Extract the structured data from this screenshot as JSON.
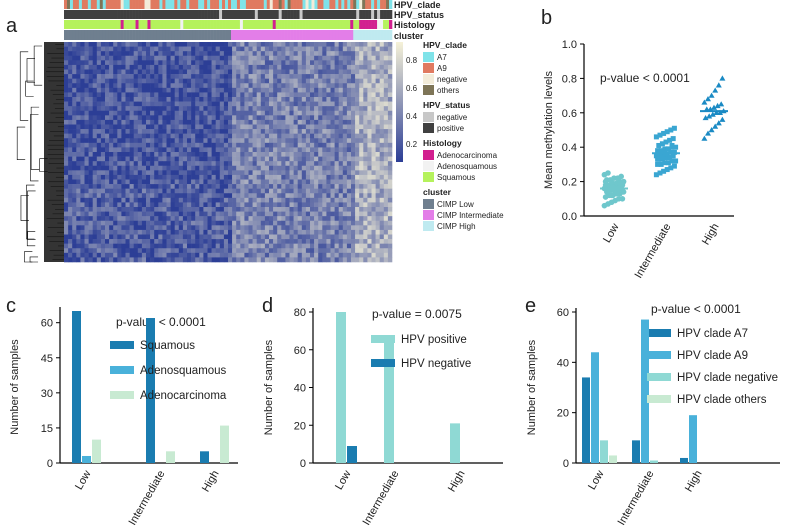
{
  "panel_labels": {
    "a": "a",
    "b": "b",
    "c": "c",
    "d": "d",
    "e": "e"
  },
  "colors": {
    "A7": "#7fe3e9",
    "A9": "#e07a60",
    "negative_clade": "#f3ecd9",
    "others": "#7e7557",
    "status_negative": "#c8c8c8",
    "status_positive": "#404040",
    "adenocarcinoma": "#d21f8f",
    "adenosquamous": "#f2f2f2",
    "squamous": "#b5f25c",
    "cimp_low": "#6f7f8f",
    "cimp_intermediate": "#e37ee8",
    "cimp_high": "#bfeaf0",
    "heat_low": "#2c3e96",
    "heat_high": "#f6f2d8",
    "bar_dark": "#1a7cb0",
    "bar_mid": "#49b1da",
    "bar_teal": "#8fd9d4",
    "bar_light": "#c8ead2",
    "dot_low": "#6fc7cc",
    "dot_int": "#3aa6d2",
    "dot_high": "#1a8ac4"
  },
  "heatmap": {
    "track_labels": [
      "HPV_clade",
      "HPV_status",
      "Histology",
      "cluster"
    ],
    "colorbar_ticks": [
      "0.8",
      "0.6",
      "0.4",
      "0.2"
    ],
    "legend": [
      {
        "title": "HPV_clade",
        "items": [
          "A7",
          "A9",
          "negative",
          "others"
        ]
      },
      {
        "title": "HPV_status",
        "items": [
          "negative",
          "positive"
        ]
      },
      {
        "title": "Histology",
        "items": [
          "Adenocarcinoma",
          "Adenosquamous",
          "Squamous"
        ]
      },
      {
        "title": "cluster",
        "items": [
          "CIMP Low",
          "CIMP Intermediate",
          "CIMP High"
        ]
      }
    ]
  },
  "chart_data": [
    {
      "panel": "b",
      "type": "scatter",
      "annotation": "p-value < 0.0001",
      "ylabel": "Mean methylation levels",
      "categories": [
        "Low",
        "Intermediate",
        "High"
      ],
      "ylim": [
        0,
        1.0
      ],
      "yticks": [
        "0.0",
        "0.2",
        "0.4",
        "0.6",
        "0.8",
        "1.0"
      ],
      "means": [
        0.16,
        0.365,
        0.61
      ],
      "series": [
        {
          "category": "Low",
          "values": [
            0.06,
            0.07,
            0.08,
            0.09,
            0.1,
            0.1,
            0.11,
            0.12,
            0.12,
            0.13,
            0.13,
            0.14,
            0.14,
            0.15,
            0.15,
            0.15,
            0.16,
            0.16,
            0.16,
            0.17,
            0.17,
            0.17,
            0.18,
            0.18,
            0.18,
            0.19,
            0.19,
            0.2,
            0.2,
            0.21,
            0.21,
            0.22,
            0.22,
            0.23,
            0.24,
            0.25,
            0.12,
            0.14,
            0.16,
            0.18,
            0.2,
            0.15,
            0.17,
            0.13,
            0.19
          ]
        },
        {
          "category": "Intermediate",
          "values": [
            0.24,
            0.25,
            0.26,
            0.27,
            0.28,
            0.29,
            0.3,
            0.3,
            0.31,
            0.31,
            0.32,
            0.32,
            0.33,
            0.33,
            0.34,
            0.34,
            0.35,
            0.35,
            0.36,
            0.36,
            0.36,
            0.37,
            0.37,
            0.38,
            0.38,
            0.39,
            0.39,
            0.4,
            0.4,
            0.41,
            0.42,
            0.43,
            0.44,
            0.45,
            0.46,
            0.47,
            0.48,
            0.49,
            0.5,
            0.51,
            0.33,
            0.35,
            0.37,
            0.39,
            0.41
          ]
        },
        {
          "category": "High",
          "values": [
            0.45,
            0.48,
            0.5,
            0.52,
            0.54,
            0.56,
            0.57,
            0.58,
            0.59,
            0.6,
            0.6,
            0.61,
            0.62,
            0.62,
            0.63,
            0.64,
            0.65,
            0.66,
            0.68,
            0.7,
            0.73,
            0.76,
            0.8
          ]
        }
      ]
    },
    {
      "panel": "c",
      "type": "bar",
      "annotation": "p-value < 0.0001",
      "ylabel": "Number of samples",
      "categories": [
        "Low",
        "Intermediate",
        "High"
      ],
      "ylim": [
        0,
        65
      ],
      "yticks": [
        "0",
        "15",
        "30",
        "45",
        "60"
      ],
      "series": [
        {
          "name": "Squamous",
          "values": [
            65,
            62,
            5
          ]
        },
        {
          "name": "Adenosquamous",
          "values": [
            3,
            0,
            0
          ]
        },
        {
          "name": "Adenocarcinoma",
          "values": [
            10,
            5,
            16
          ]
        }
      ]
    },
    {
      "panel": "d",
      "type": "bar",
      "annotation": "p-value = 0.0075",
      "ylabel": "Number of samples",
      "categories": [
        "Low",
        "Intermediate",
        "High"
      ],
      "ylim": [
        0,
        80
      ],
      "yticks": [
        "0",
        "20",
        "40",
        "60",
        "80"
      ],
      "series": [
        {
          "name": "HPV positive",
          "values": [
            80,
            67,
            21
          ]
        },
        {
          "name": "HPV negative",
          "values": [
            9,
            0,
            0
          ]
        }
      ]
    },
    {
      "panel": "e",
      "type": "bar",
      "annotation": "p-value < 0.0001",
      "ylabel": "Number of samples",
      "categories": [
        "Low",
        "Intermediate",
        "High"
      ],
      "ylim": [
        0,
        60
      ],
      "yticks": [
        "0",
        "20",
        "40",
        "60"
      ],
      "series": [
        {
          "name": "HPV clade A7",
          "values": [
            34,
            9,
            2
          ]
        },
        {
          "name": "HPV clade A9",
          "values": [
            44,
            57,
            19
          ]
        },
        {
          "name": " HPV clade negative",
          "values": [
            9,
            1,
            0
          ]
        },
        {
          "name": "HPV clade others",
          "values": [
            3,
            0,
            0
          ]
        }
      ]
    }
  ]
}
